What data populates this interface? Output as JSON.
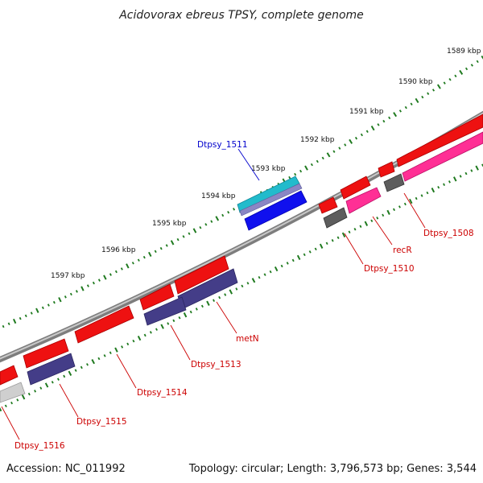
{
  "title": "Acidovorax ebreus TPSY, complete genome",
  "accession": "Accession: NC_011992",
  "topology": "Topology: circular; Length: 3,796,573 bp; Genes: 3,544",
  "colors": {
    "backbone": "#8c8c8c",
    "tick": "#1f7a1f",
    "gene_forward": "#ee1111",
    "gene_reverse": "#443d88",
    "gene_pseudo": "#5d5d5d",
    "gene_pink": "#ff2f95",
    "gene_blue": "#1010ee",
    "gene_cyan": "#22bbcc",
    "label_red": "#cc0000",
    "label_blue": "#0000cc"
  },
  "ticks": [
    "1589 kbp",
    "1590 kbp",
    "1591 kbp",
    "1592 kbp",
    "1593 kbp",
    "1594 kbp",
    "1595 kbp",
    "1596 kbp",
    "1597 kbp"
  ],
  "labels": [
    "Dtpsy_1511",
    "Dtpsy_1508",
    "recR",
    "Dtpsy_1510",
    "metN",
    "Dtpsy_1513",
    "Dtpsy_1514",
    "Dtpsy_1515",
    "Dtpsy_1516"
  ]
}
